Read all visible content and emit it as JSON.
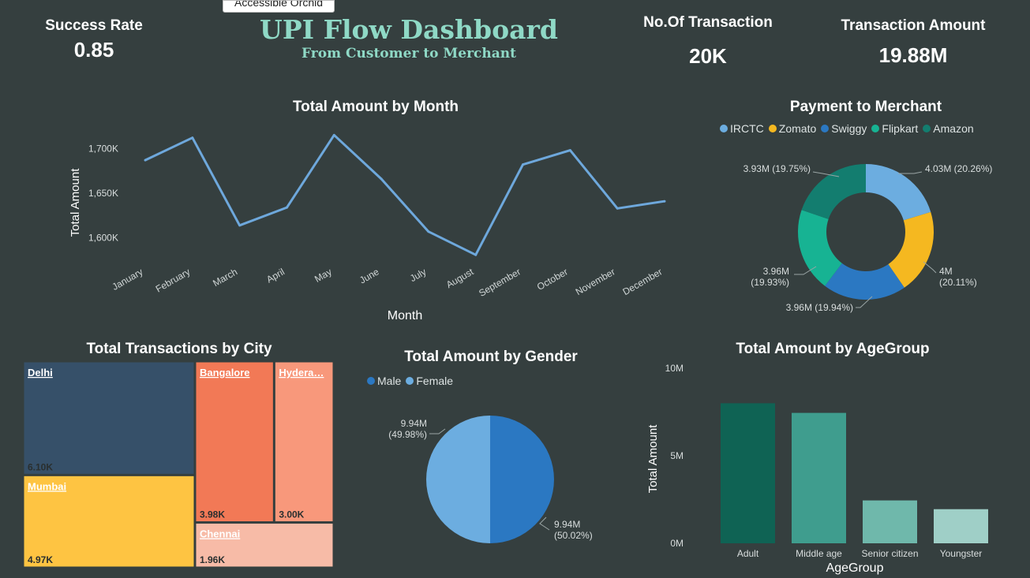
{
  "header": {
    "tooltip": "Accessible Orchid",
    "title": "UPI Flow Dashboard",
    "subtitle": "From Customer to Merchant"
  },
  "kpis": {
    "success_rate": {
      "label": "Success Rate",
      "value": "0.85"
    },
    "transactions": {
      "label": "No.Of Transaction",
      "value": "20K"
    },
    "amount": {
      "label": "Transaction Amount",
      "value": "19.88M"
    }
  },
  "colors": {
    "background": "#353f3f",
    "line": "#6ea8dc",
    "title_accent": "#8fd9c6"
  },
  "chart_data": [
    {
      "id": "month",
      "type": "line",
      "title": "Total Amount by Month",
      "xlabel": "Month",
      "ylabel": "Total Amount",
      "categories": [
        "January",
        "February",
        "March",
        "April",
        "May",
        "June",
        "July",
        "August",
        "September",
        "October",
        "November",
        "December"
      ],
      "values": [
        1687,
        1712,
        1614,
        1634,
        1715,
        1666,
        1607,
        1581,
        1682,
        1698,
        1633,
        1641
      ],
      "unit": "K",
      "yticks": [
        {
          "v": 1600,
          "label": "1,600K"
        },
        {
          "v": 1650,
          "label": "1,650K"
        },
        {
          "v": 1700,
          "label": "1,700K"
        }
      ],
      "ylim": [
        1575,
        1725
      ],
      "color": "#6ea8dc"
    },
    {
      "id": "merchant",
      "type": "pie",
      "donut": true,
      "title": "Payment to Merchant",
      "slices": [
        {
          "name": "IRCTC",
          "value": 4.03,
          "pct": 20.26,
          "color": "#6cade0",
          "label1": "4.03M (20.26%)",
          "label2": ""
        },
        {
          "name": "Zomato",
          "value": 4.0,
          "pct": 20.11,
          "color": "#f5b820",
          "label1": "4M",
          "label2": "(20.11%)"
        },
        {
          "name": "Swiggy",
          "value": 3.96,
          "pct": 19.94,
          "color": "#2b78c2",
          "label1": "3.96M (19.94%)",
          "label2": ""
        },
        {
          "name": "Flipkart",
          "value": 3.96,
          "pct": 19.93,
          "color": "#17b393",
          "label1": "3.96M",
          "label2": "(19.93%)"
        },
        {
          "name": "Amazon",
          "value": 3.93,
          "pct": 19.75,
          "color": "#137d6f",
          "label1": "3.93M (19.75%)",
          "label2": ""
        }
      ]
    },
    {
      "id": "city",
      "type": "treemap",
      "title": "Total Transactions by City",
      "items": [
        {
          "name": "Delhi",
          "value": 6.1,
          "label": "6.10K",
          "color": "#365069"
        },
        {
          "name": "Mumbai",
          "value": 4.97,
          "label": "4.97K",
          "color": "#fec442"
        },
        {
          "name": "Bangalore",
          "value": 3.98,
          "label": "3.98K",
          "color": "#f27956"
        },
        {
          "name": "Hydera…",
          "value": 3.0,
          "label": "3.00K",
          "color": "#f8987b"
        },
        {
          "name": "Chennai",
          "value": 1.96,
          "label": "1.96K",
          "color": "#f7bba7"
        }
      ]
    },
    {
      "id": "gender",
      "type": "pie",
      "title": "Total Amount by Gender",
      "slices": [
        {
          "name": "Male",
          "value": 9.94,
          "pct": 50.02,
          "color": "#2b78c2",
          "label1": "9.94M",
          "label2": "(50.02%)"
        },
        {
          "name": "Female",
          "value": 9.94,
          "pct": 49.98,
          "color": "#6cade0",
          "label1": "9.94M",
          "label2": "(49.98%)"
        }
      ]
    },
    {
      "id": "age",
      "type": "bar",
      "title": "Total Amount by AgeGroup",
      "xlabel": "AgeGroup",
      "ylabel": "Total Amount",
      "categories": [
        "Adult",
        "Middle age",
        "Senior citizen",
        "Youngster"
      ],
      "values": [
        8.0,
        7.45,
        2.45,
        1.95
      ],
      "colors": [
        "#0f6354",
        "#3f9d8e",
        "#6fb8ab",
        "#9fcfc7"
      ],
      "yticks": [
        {
          "v": 0,
          "label": "0M"
        },
        {
          "v": 5,
          "label": "5M"
        },
        {
          "v": 10,
          "label": "10M"
        }
      ],
      "ylim": [
        0,
        10
      ]
    }
  ]
}
